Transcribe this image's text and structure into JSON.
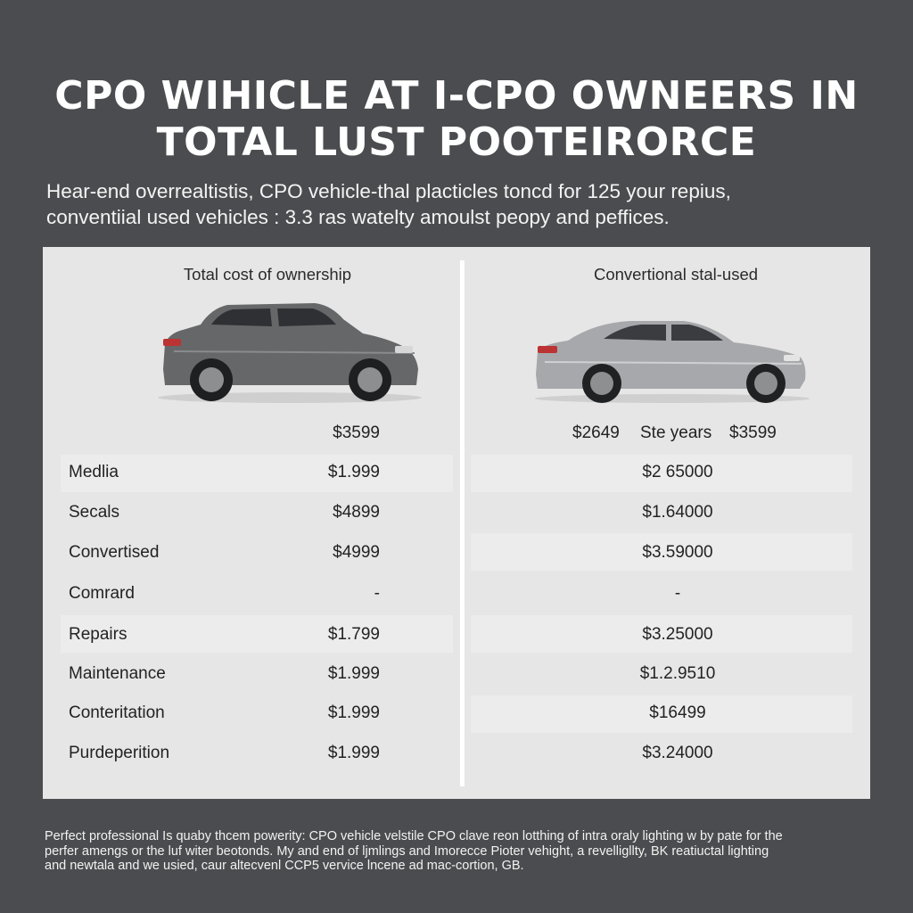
{
  "title": {
    "line1": "CPO WIHICLE AT I-CPO OWNEERS IN",
    "line2": "TOTAL LUST POOTEIRORCE"
  },
  "subtitle": {
    "line1": "Hear-end overrealtistis, CPO vehicle-thal placticles toncd for 125 your repius,",
    "line2": "conventiial used vehicles : 3.3 ras watelty amoulst peopy and peffices."
  },
  "left_column": {
    "heading": "Total cost of ownership",
    "car_icon": "suv-icon",
    "top_value": "$3599"
  },
  "right_column": {
    "heading": "Convertional stal-used",
    "car_icon": "sedan-icon",
    "top_values": [
      "$2649",
      "Ste years",
      "$3599"
    ]
  },
  "rows": [
    {
      "label": "Medlia",
      "left": "$1.999",
      "right": "$2 65000"
    },
    {
      "label": "Secals",
      "left": "$4899",
      "right": "$1.64000"
    },
    {
      "label": "Convertised",
      "left": "$4999",
      "right": "$3.59000"
    },
    {
      "label": "Comrard",
      "left": "-",
      "right": "-"
    },
    {
      "label": "Repairs",
      "left": "$1.799",
      "right": "$3.25000"
    },
    {
      "label": "Maintenance",
      "left": "$1.999",
      "right": "$1.2.9510"
    },
    {
      "label": "Conteritation",
      "left": "$1.999",
      "right": "$16499"
    },
    {
      "label": "Purdeperition",
      "left": "$1.999",
      "right": "$3.24000"
    }
  ],
  "footer": {
    "line1": "Perfect professional Is quaby thcem powerity: CPO vehicle velstile CPO clave reon lotthing of intra oraly lighting w by pate for the",
    "line2": "perfer amengs or the luf witer beotonds. My and end of ljmlings and Imorecce Pioter vehight, a revelligllty, BK reatiuctal lighting",
    "line3": "and newtala and we usied, caur altecvenl CCP5 vervice lncene ad mac-cortion, GB."
  },
  "colors": {
    "background": "#4b4c4f",
    "panel": "#e6e6e6",
    "text_dark": "#222222",
    "car_gray": "#6a6b6e",
    "car_silver": "#a9aaad"
  }
}
